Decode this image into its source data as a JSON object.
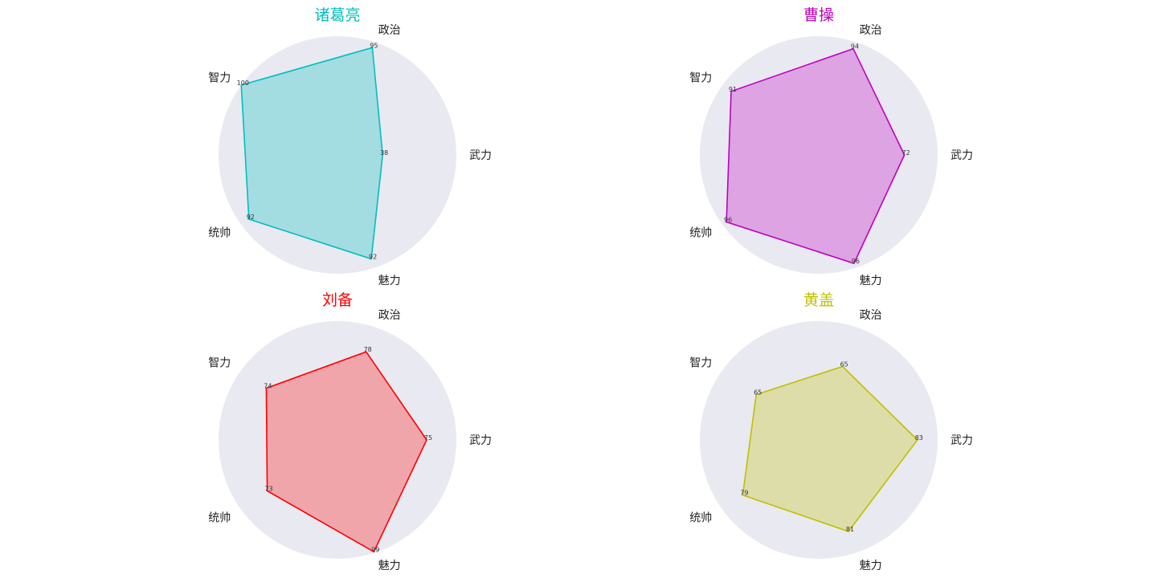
{
  "chart_data": [
    {
      "type": "radar",
      "title": "诸葛亮",
      "color": "#00BFBF",
      "fill_color": "#A3DDE1",
      "background_color": "#E9E9F1",
      "grid": false,
      "axes": [
        "武力",
        "政治",
        "智力",
        "统帅",
        "魅力"
      ],
      "values": [
        38,
        95,
        100,
        92,
        92
      ],
      "rlim": [
        0,
        100
      ]
    },
    {
      "type": "radar",
      "title": "曹操",
      "color": "#BF00BF",
      "fill_color": "#DDA3E3",
      "background_color": "#E9E9F1",
      "grid": false,
      "axes": [
        "武力",
        "政治",
        "智力",
        "统帅",
        "魅力"
      ],
      "values": [
        72,
        94,
        91,
        96,
        96
      ],
      "rlim": [
        0,
        100
      ]
    },
    {
      "type": "radar",
      "title": "刘备",
      "color": "#FF0000",
      "fill_color": "#F0A5AA",
      "background_color": "#E9E9F1",
      "grid": false,
      "axes": [
        "武力",
        "政治",
        "智力",
        "统帅",
        "魅力"
      ],
      "values": [
        75,
        78,
        74,
        73,
        99
      ],
      "rlim": [
        0,
        100
      ]
    },
    {
      "type": "radar",
      "title": "黄盖",
      "color": "#BFBF00",
      "fill_color": "#DDDDA9",
      "background_color": "#E9E9F1",
      "grid": false,
      "axes": [
        "武力",
        "政治",
        "智力",
        "统帅",
        "魅力"
      ],
      "values": [
        83,
        65,
        65,
        79,
        81
      ],
      "rlim": [
        0,
        100
      ]
    }
  ]
}
